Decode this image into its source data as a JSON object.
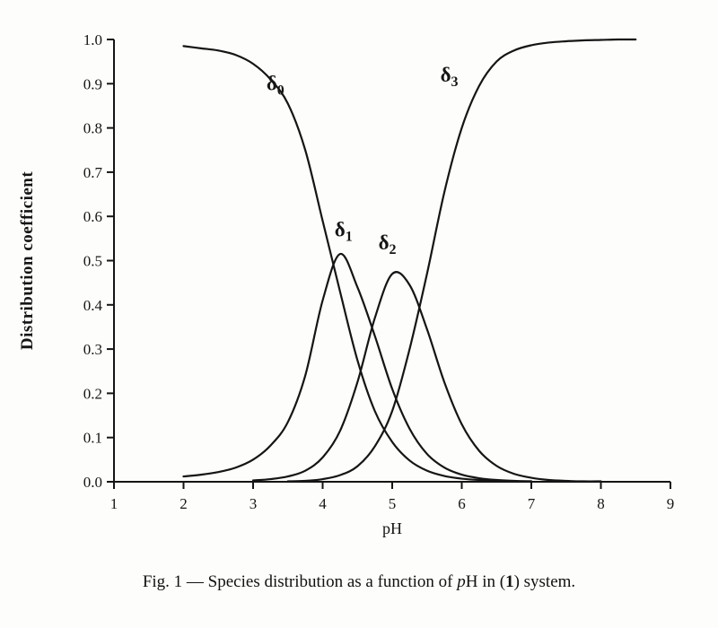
{
  "colors": {
    "ink": "#151515",
    "paper": "#fdfdfb"
  },
  "caption": {
    "prefix": "Fig. 1 — Species distribution as a function of ",
    "p_italic": "p",
    "mid": "H in (",
    "bold_one": "1",
    "suffix": ") system."
  },
  "chart_data": {
    "type": "line",
    "title": "",
    "xlabel": "pH",
    "ylabel": "Distribution coefficient",
    "xlim": [
      1,
      9
    ],
    "ylim": [
      0.0,
      1.0
    ],
    "grid": false,
    "legend": "inline-curve-labels",
    "x_ticks": [
      {
        "value": 1,
        "label": "1"
      },
      {
        "value": 2,
        "label": "2"
      },
      {
        "value": 3,
        "label": "3"
      },
      {
        "value": 4,
        "label": "4"
      },
      {
        "value": 5,
        "label": "5"
      },
      {
        "value": 6,
        "label": "6"
      },
      {
        "value": 7,
        "label": "7"
      },
      {
        "value": 8,
        "label": "8"
      },
      {
        "value": 9,
        "label": "9"
      }
    ],
    "y_ticks": [
      {
        "value": 0.0,
        "label": "0.0"
      },
      {
        "value": 0.1,
        "label": "0.1"
      },
      {
        "value": 0.2,
        "label": "0.2"
      },
      {
        "value": 0.3,
        "label": "0.3"
      },
      {
        "value": 0.4,
        "label": "0.4"
      },
      {
        "value": 0.5,
        "label": "0.5"
      },
      {
        "value": 0.6,
        "label": "0.6"
      },
      {
        "value": 0.7,
        "label": "0.7"
      },
      {
        "value": 0.8,
        "label": "0.8"
      },
      {
        "value": 0.9,
        "label": "0.9"
      },
      {
        "value": 1.0,
        "label": "1.0"
      }
    ],
    "series": [
      {
        "name": "delta0",
        "label_base": "δ",
        "label_sub": "0",
        "label_x": 3.32,
        "label_y": 0.885,
        "x": [
          2,
          2.25,
          2.5,
          2.75,
          3,
          3.25,
          3.5,
          3.75,
          4,
          4.25,
          4.5,
          4.75,
          5,
          5.25,
          5.5,
          5.75,
          6,
          6.25,
          6.5,
          6.75,
          7
        ],
        "y": [
          0.985,
          0.98,
          0.975,
          0.965,
          0.945,
          0.91,
          0.855,
          0.75,
          0.59,
          0.43,
          0.275,
          0.16,
          0.09,
          0.048,
          0.025,
          0.013,
          0.007,
          0.004,
          0.002,
          0.001,
          0.001
        ]
      },
      {
        "name": "delta1",
        "label_base": "δ",
        "label_sub": "1",
        "label_x": 4.3,
        "label_y": 0.555,
        "x": [
          2,
          2.25,
          2.5,
          2.75,
          3,
          3.25,
          3.5,
          3.75,
          4,
          4.25,
          4.5,
          4.75,
          5,
          5.25,
          5.5,
          5.75,
          6,
          6.25,
          6.5,
          6.75,
          7
        ],
        "y": [
          0.012,
          0.016,
          0.022,
          0.032,
          0.05,
          0.082,
          0.135,
          0.24,
          0.41,
          0.515,
          0.44,
          0.33,
          0.21,
          0.12,
          0.063,
          0.032,
          0.016,
          0.008,
          0.004,
          0.002,
          0.001
        ]
      },
      {
        "name": "delta2",
        "label_base": "δ",
        "label_sub": "2",
        "label_x": 4.93,
        "label_y": 0.525,
        "x": [
          3,
          3.25,
          3.5,
          3.75,
          4,
          4.25,
          4.5,
          4.75,
          5,
          5.25,
          5.5,
          5.75,
          6,
          6.25,
          6.5,
          6.75,
          7,
          7.25,
          7.5,
          7.75,
          8
        ],
        "y": [
          0.003,
          0.006,
          0.012,
          0.025,
          0.055,
          0.115,
          0.225,
          0.37,
          0.47,
          0.445,
          0.345,
          0.225,
          0.13,
          0.07,
          0.036,
          0.018,
          0.009,
          0.004,
          0.002,
          0.001,
          0.001
        ]
      },
      {
        "name": "delta3",
        "label_base": "δ",
        "label_sub": "3",
        "label_x": 5.82,
        "label_y": 0.905,
        "x": [
          3.5,
          3.75,
          4,
          4.25,
          4.5,
          4.75,
          5,
          5.25,
          5.5,
          5.75,
          6,
          6.25,
          6.5,
          6.75,
          7,
          7.25,
          7.5,
          7.75,
          8,
          8.25,
          8.5
        ],
        "y": [
          0.001,
          0.002,
          0.006,
          0.015,
          0.035,
          0.08,
          0.16,
          0.3,
          0.47,
          0.655,
          0.8,
          0.895,
          0.95,
          0.975,
          0.987,
          0.993,
          0.996,
          0.998,
          0.999,
          1,
          1
        ]
      }
    ]
  }
}
